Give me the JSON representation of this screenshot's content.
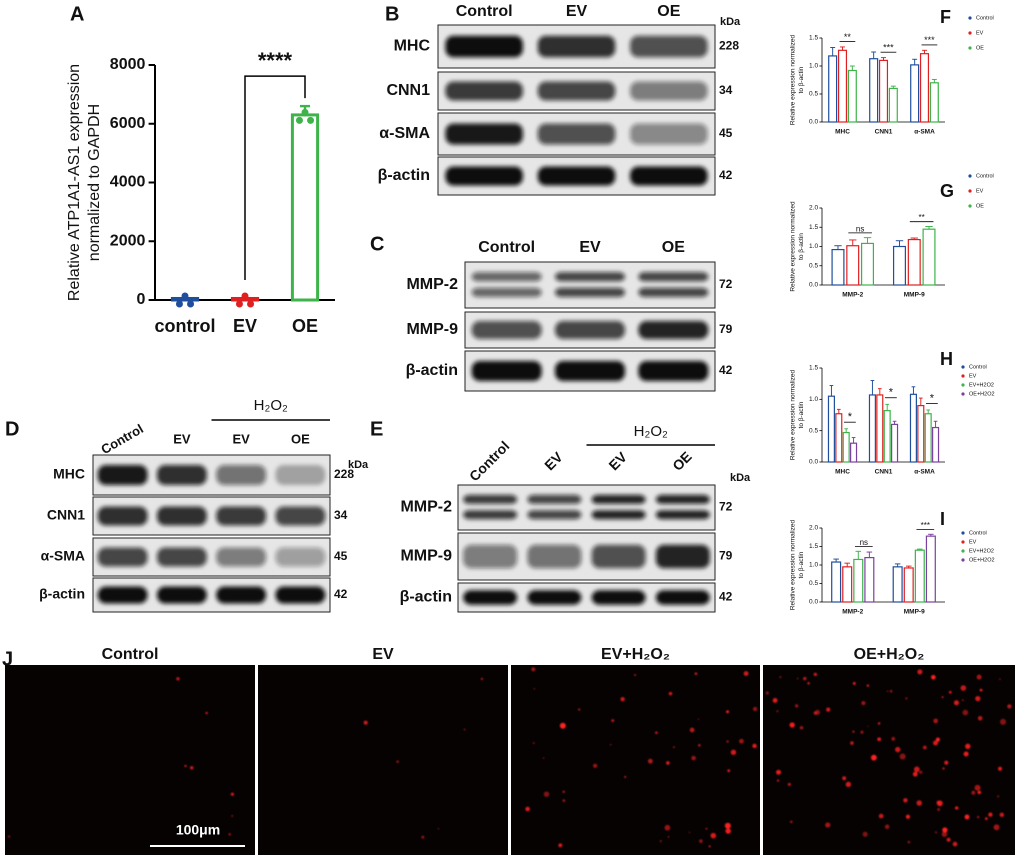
{
  "chart_data": [
    {
      "type": "bar",
      "panel": "A",
      "ylabel": [
        "Relative ATP1A1-AS1 expression",
        "normalized to GAPDH"
      ],
      "categories": [
        "control",
        "EV",
        "OE"
      ],
      "values": [
        1,
        1,
        6250
      ],
      "errors": [
        0,
        0,
        350
      ],
      "colors": [
        "#1f4e9c",
        "#e02020",
        "#3cb44a"
      ],
      "annotation": "****",
      "ylim": [
        0,
        8000
      ],
      "yticks": [
        0,
        2000,
        4000,
        6000,
        8000
      ]
    },
    {
      "type": "bar",
      "panel": "F",
      "ylabel": [
        "Relative expression normalized",
        "to β-actin"
      ],
      "categories": [
        "MHC",
        "CNN1",
        "α-SMA"
      ],
      "series": [
        {
          "name": "Control",
          "color": "#1f4e9c",
          "values": [
            1.18,
            1.13,
            1.02
          ],
          "errors": [
            0.15,
            0.12,
            0.1
          ]
        },
        {
          "name": "EV",
          "color": "#e02020",
          "values": [
            1.28,
            1.1,
            1.22
          ],
          "errors": [
            0.06,
            0.05,
            0.06
          ]
        },
        {
          "name": "OE",
          "color": "#3cb44a",
          "values": [
            0.92,
            0.6,
            0.7
          ],
          "errors": [
            0.08,
            0.04,
            0.06
          ]
        }
      ],
      "annotations": [
        "**",
        "***",
        "***"
      ],
      "ylim": [
        0,
        1.5
      ],
      "yticks": [
        {
          "value": 0,
          "label": "0.0"
        },
        0.5,
        {
          "value": 1,
          "label": "1.0"
        },
        1.5
      ]
    },
    {
      "type": "bar",
      "panel": "G",
      "ylabel": [
        "Relative expression normalized",
        "to β-actin"
      ],
      "categories": [
        "MMP-2",
        "MMP-9"
      ],
      "series": [
        {
          "name": "Control",
          "color": "#1f4e9c",
          "values": [
            0.92,
            1.0
          ],
          "errors": [
            0.1,
            0.15
          ]
        },
        {
          "name": "EV",
          "color": "#e02020",
          "values": [
            1.02,
            1.18
          ],
          "errors": [
            0.15,
            0.04
          ]
        },
        {
          "name": "OE",
          "color": "#3cb44a",
          "values": [
            1.08,
            1.45
          ],
          "errors": [
            0.15,
            0.07
          ]
        }
      ],
      "annotations": [
        "ns",
        "**"
      ],
      "ylim": [
        0,
        2
      ],
      "yticks": [
        {
          "value": 0,
          "label": "0.0"
        },
        0.5,
        {
          "value": 1,
          "label": "1.0"
        },
        1.5,
        {
          "value": 2,
          "label": "2.0"
        }
      ]
    },
    {
      "type": "bar",
      "panel": "H",
      "ylabel": [
        "Relative expression normalized",
        "to β-actin"
      ],
      "categories": [
        "MHC",
        "CNN1",
        "α-SMA"
      ],
      "series": [
        {
          "name": "Control",
          "color": "#1f4e9c",
          "values": [
            1.05,
            1.07,
            1.08
          ],
          "errors": [
            0.17,
            0.23,
            0.12
          ]
        },
        {
          "name": "EV",
          "color": "#e02020",
          "values": [
            0.77,
            1.07,
            0.9
          ],
          "errors": [
            0.07,
            0.1,
            0.12
          ]
        },
        {
          "name": "EV+H2O2",
          "color": "#3cb44a",
          "values": [
            0.47,
            0.82,
            0.77
          ],
          "errors": [
            0.06,
            0.1,
            0.06
          ]
        },
        {
          "name": "OE+H2O2",
          "color": "#7b3fa0",
          "values": [
            0.3,
            0.6,
            0.55
          ],
          "errors": [
            0.09,
            0.05,
            0.1
          ]
        }
      ],
      "annotations": [
        "*",
        "*",
        "*"
      ],
      "ylim": [
        0,
        1.5
      ],
      "yticks": [
        {
          "value": 0,
          "label": "0.0"
        },
        0.5,
        {
          "value": 1,
          "label": "1.0"
        },
        1.5
      ]
    },
    {
      "type": "bar",
      "panel": "I",
      "ylabel": [
        "Relative expression normalized",
        "to β-actin"
      ],
      "categories": [
        "MMP-2",
        "MMP-9"
      ],
      "series": [
        {
          "name": "Control",
          "color": "#1f4e9c",
          "values": [
            1.08,
            0.95
          ],
          "errors": [
            0.08,
            0.08
          ]
        },
        {
          "name": "EV",
          "color": "#e02020",
          "values": [
            0.95,
            0.92
          ],
          "errors": [
            0.1,
            0.05
          ]
        },
        {
          "name": "EV+H2O2",
          "color": "#3cb44a",
          "values": [
            1.15,
            1.4
          ],
          "errors": [
            0.22,
            0.03
          ]
        },
        {
          "name": "OE+H2O2",
          "color": "#7b3fa0",
          "values": [
            1.2,
            1.78
          ],
          "errors": [
            0.15,
            0.05
          ]
        }
      ],
      "annotations": [
        "ns",
        "***"
      ],
      "ylim": [
        0,
        2
      ],
      "yticks": [
        {
          "value": 0,
          "label": "0.0"
        },
        0.5,
        {
          "value": 1,
          "label": "1.0"
        },
        1.5,
        {
          "value": 2,
          "label": "2.0"
        }
      ]
    }
  ],
  "blots": [
    {
      "panel": "B",
      "header": [
        "Control",
        "EV",
        "OE"
      ],
      "unit": "kDa",
      "rows": [
        {
          "name": "MHC",
          "kda": 228
        },
        {
          "name": "CNN1",
          "kda": 34
        },
        {
          "name": "α-SMA",
          "kda": 45
        },
        {
          "name": "β-actin",
          "kda": 42
        }
      ]
    },
    {
      "panel": "C",
      "header": [
        "Control",
        "EV",
        "OE"
      ],
      "rows": [
        {
          "name": "MMP-2",
          "kda": 72
        },
        {
          "name": "MMP-9",
          "kda": 79
        },
        {
          "name": "β-actin",
          "kda": 42
        }
      ]
    },
    {
      "panel": "D",
      "header": [
        "Control",
        "EV",
        "EV",
        "OE"
      ],
      "treatment": "H₂O₂",
      "unit": "kDa",
      "rows": [
        {
          "name": "MHC",
          "kda": 228
        },
        {
          "name": "CNN1",
          "kda": 34
        },
        {
          "name": "α-SMA",
          "kda": 45
        },
        {
          "name": "β-actin",
          "kda": 42
        }
      ]
    },
    {
      "panel": "E",
      "header": [
        "Control",
        "EV",
        "EV",
        "OE"
      ],
      "treatment": "H₂O₂",
      "unit": "kDa",
      "rows": [
        {
          "name": "MMP-2",
          "kda": 72
        },
        {
          "name": "MMP-9",
          "kda": 79
        },
        {
          "name": "β-actin",
          "kda": 42
        }
      ]
    }
  ],
  "images": {
    "panel": "J",
    "titles": [
      "Control",
      "EV",
      "EV+H₂O₂",
      "OE+H₂O₂"
    ],
    "scale_bar": "100μm"
  }
}
